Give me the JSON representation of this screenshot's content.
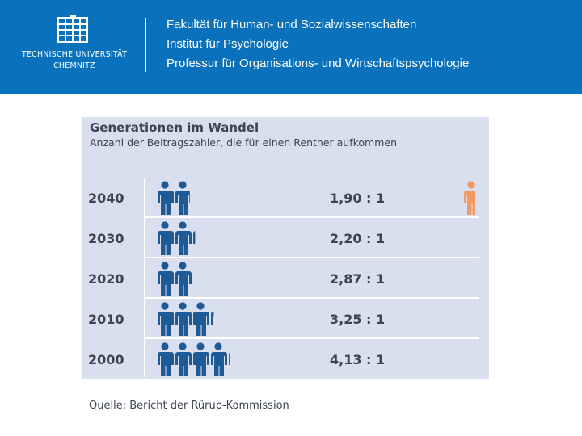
{
  "header": {
    "logo": {
      "line1": "TECHNISCHE UNIVERSITÄT",
      "line2": "CHEMNITZ",
      "icon": "tu-chemnitz-building-logo-icon"
    },
    "lines": [
      "Fakultät für Human- und Sozialwissenschaften",
      "Institut für Psychologie",
      "Professur für Organisations- und Wirtschaftspsychologie"
    ]
  },
  "chart_data": {
    "type": "table",
    "title": "Generationen im Wandel",
    "subtitle": "Anzahl der Beitragszahler, die für einen Rentner aufkommen",
    "rows": [
      {
        "year": "2040",
        "ratio_label": "1,90 : 1",
        "contributors": 1.9,
        "pensioners": 1
      },
      {
        "year": "2030",
        "ratio_label": "2,20 : 1",
        "contributors": 2.2,
        "pensioners": 1
      },
      {
        "year": "2020",
        "ratio_label": "2,87 : 1",
        "contributors": 2.87,
        "pensioners": 1
      },
      {
        "year": "2010",
        "ratio_label": "3,25 : 1",
        "contributors": 3.25,
        "pensioners": 1
      },
      {
        "year": "2000",
        "ratio_label": "4,13 : 1",
        "contributors": 4.13,
        "pensioners": 1
      }
    ],
    "colors": {
      "contributor": "#1e5a96",
      "pensioner": "#f39a63",
      "panel_background": "#d9dfee",
      "text": "#3b4450"
    },
    "icons": {
      "contributor": "person-icon-contributor",
      "pensioner": "person-icon-pensioner"
    }
  },
  "source": "Quelle: Bericht der Rürup-Kommission"
}
